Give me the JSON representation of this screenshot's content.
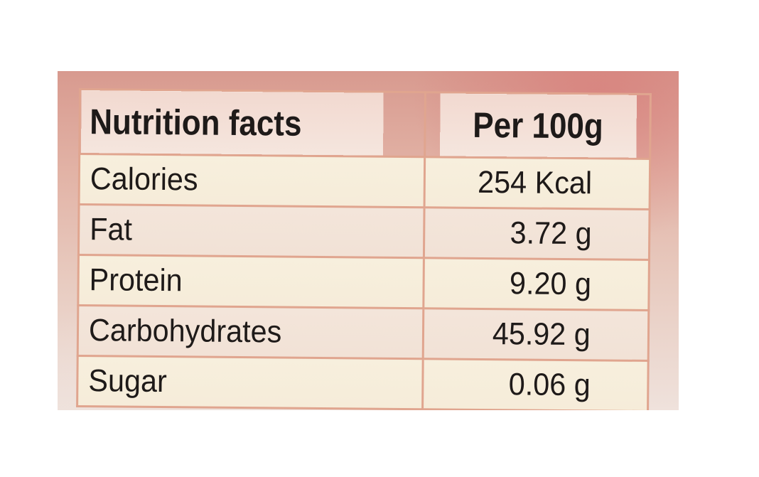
{
  "nutrition_table": {
    "header": {
      "label": "Nutrition facts",
      "value": "Per 100g"
    },
    "rows": [
      {
        "label": "Calories",
        "value": "254 Kcal"
      },
      {
        "label": "Fat",
        "value": "3.72 g"
      },
      {
        "label": "Protein",
        "value": "9.20 g"
      },
      {
        "label": "Carbohydrates",
        "value": "45.92 g"
      },
      {
        "label": "Sugar",
        "value": "0.06 g"
      }
    ]
  },
  "colors": {
    "background_top": "#d89a8f",
    "background_bottom": "#efe2dc",
    "border": "#e0a58f",
    "row_fill": "#f7efdd",
    "text": "#1e1a19"
  }
}
